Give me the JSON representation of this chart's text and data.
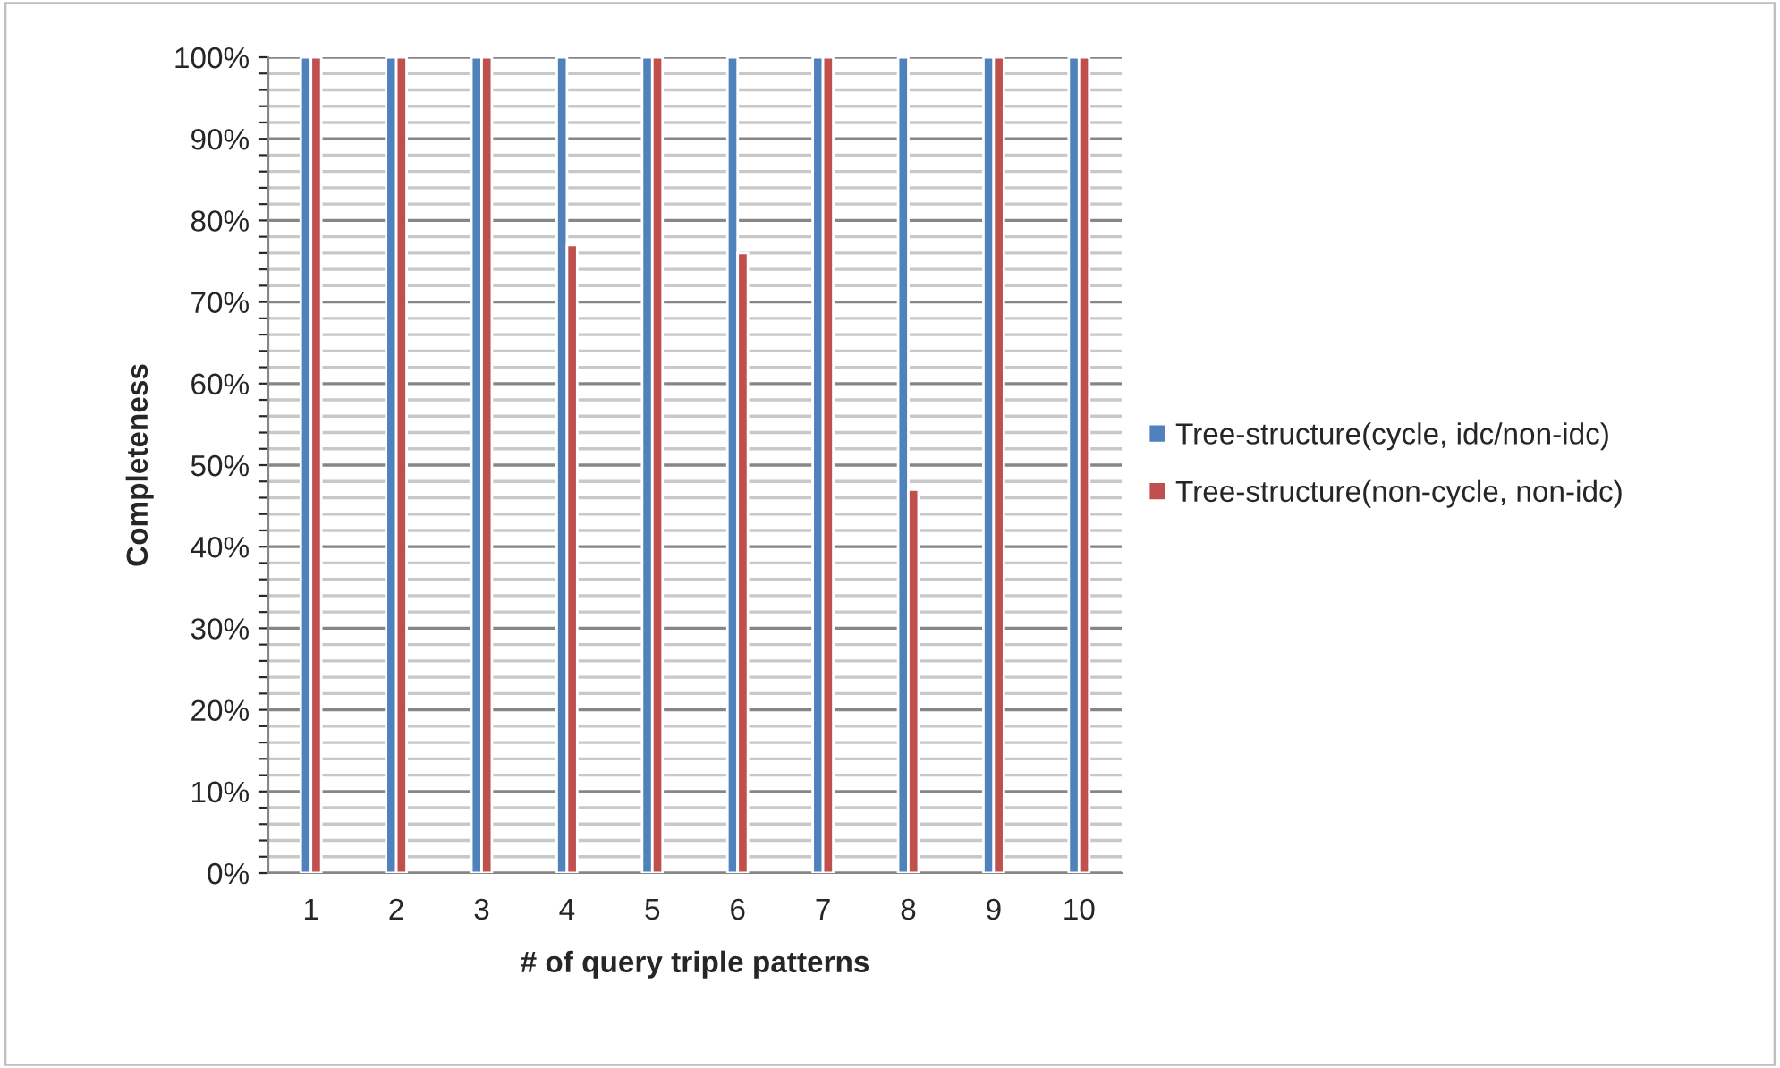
{
  "chart_data": {
    "type": "bar",
    "xlabel": "# of query triple patterns",
    "ylabel": "Completeness",
    "categories": [
      "1",
      "2",
      "3",
      "4",
      "5",
      "6",
      "7",
      "8",
      "9",
      "10"
    ],
    "series": [
      {
        "name": "Tree-structure(cycle, idc/non-idc)",
        "color": "#4f81bd",
        "values": [
          100,
          100,
          100,
          100,
          100,
          100,
          100,
          100,
          100,
          100
        ]
      },
      {
        "name": "Tree-structure(non-cycle, non-idc)",
        "color": "#c0504d",
        "values": [
          100,
          100,
          100,
          77,
          100,
          76,
          100,
          47,
          100,
          100
        ]
      }
    ],
    "ylim": [
      0,
      100
    ],
    "yticks": [
      {
        "value": 0,
        "label": "0%"
      },
      {
        "value": 2,
        "label": null
      },
      {
        "value": 4,
        "label": null
      },
      {
        "value": 6,
        "label": null
      },
      {
        "value": 8,
        "label": null
      },
      {
        "value": 10,
        "label": "10%"
      },
      {
        "value": 12,
        "label": null
      },
      {
        "value": 14,
        "label": null
      },
      {
        "value": 16,
        "label": null
      },
      {
        "value": 18,
        "label": null
      },
      {
        "value": 20,
        "label": "20%"
      },
      {
        "value": 22,
        "label": null
      },
      {
        "value": 24,
        "label": null
      },
      {
        "value": 26,
        "label": null
      },
      {
        "value": 28,
        "label": null
      },
      {
        "value": 30,
        "label": "30%"
      },
      {
        "value": 32,
        "label": null
      },
      {
        "value": 34,
        "label": null
      },
      {
        "value": 36,
        "label": null
      },
      {
        "value": 38,
        "label": null
      },
      {
        "value": 40,
        "label": "40%"
      },
      {
        "value": 42,
        "label": null
      },
      {
        "value": 44,
        "label": null
      },
      {
        "value": 46,
        "label": null
      },
      {
        "value": 48,
        "label": null
      },
      {
        "value": 50,
        "label": "50%"
      },
      {
        "value": 52,
        "label": null
      },
      {
        "value": 54,
        "label": null
      },
      {
        "value": 56,
        "label": null
      },
      {
        "value": 58,
        "label": null
      },
      {
        "value": 60,
        "label": "60%"
      },
      {
        "value": 62,
        "label": null
      },
      {
        "value": 64,
        "label": null
      },
      {
        "value": 66,
        "label": null
      },
      {
        "value": 68,
        "label": null
      },
      {
        "value": 70,
        "label": "70%"
      },
      {
        "value": 72,
        "label": null
      },
      {
        "value": 74,
        "label": null
      },
      {
        "value": 76,
        "label": null
      },
      {
        "value": 78,
        "label": null
      },
      {
        "value": 80,
        "label": "80%"
      },
      {
        "value": 82,
        "label": null
      },
      {
        "value": 84,
        "label": null
      },
      {
        "value": 86,
        "label": null
      },
      {
        "value": 88,
        "label": null
      },
      {
        "value": 90,
        "label": "90%"
      },
      {
        "value": 92,
        "label": null
      },
      {
        "value": 94,
        "label": null
      },
      {
        "value": 96,
        "label": null
      },
      {
        "value": 98,
        "label": null
      },
      {
        "value": 100,
        "label": "100%"
      }
    ],
    "grid": "y",
    "legend": "right"
  }
}
